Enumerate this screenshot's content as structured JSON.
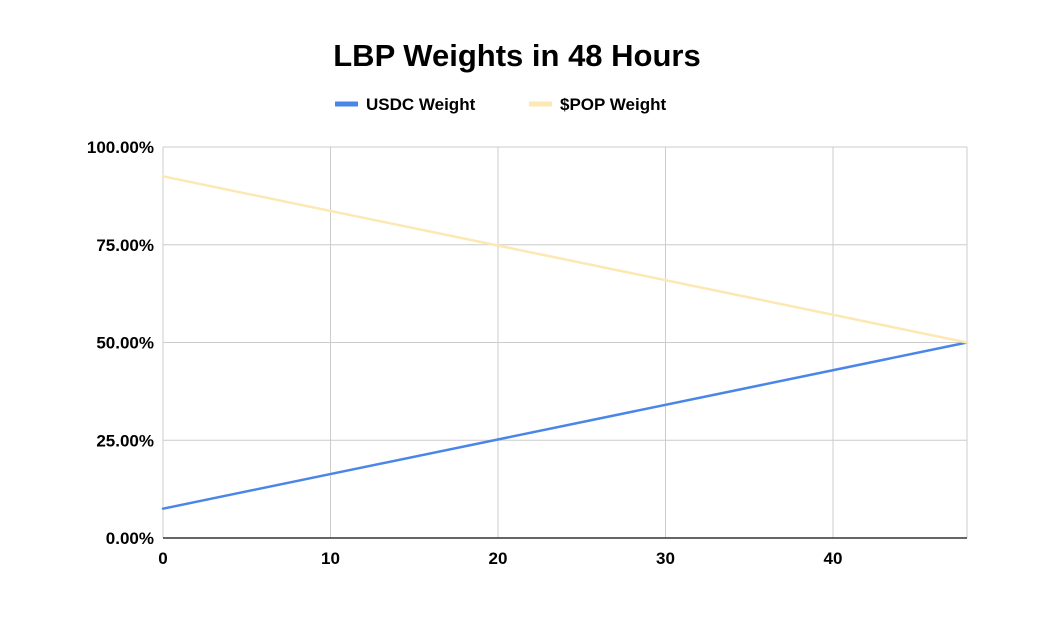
{
  "chart_data": {
    "type": "line",
    "title": "LBP Weights in 48 Hours",
    "xlabel": "",
    "ylabel": "",
    "x": [
      0,
      48
    ],
    "xlim": [
      0,
      48
    ],
    "ylim": [
      0,
      100
    ],
    "x_ticks": [
      0,
      10,
      20,
      30,
      40
    ],
    "x_tick_labels": [
      "0",
      "10",
      "20",
      "30",
      "40"
    ],
    "y_ticks": [
      0,
      25,
      50,
      75,
      100
    ],
    "y_tick_labels": [
      "0.00%",
      "25.00%",
      "50.00%",
      "75.00%",
      "100.00%"
    ],
    "grid": true,
    "legend_position": "top-center",
    "series": [
      {
        "name": "USDC Weight",
        "color": "#4a86e8",
        "values": [
          7.5,
          50
        ]
      },
      {
        "name": "$POP Weight",
        "color": "#fce8b2",
        "values": [
          92.5,
          50
        ]
      }
    ]
  }
}
